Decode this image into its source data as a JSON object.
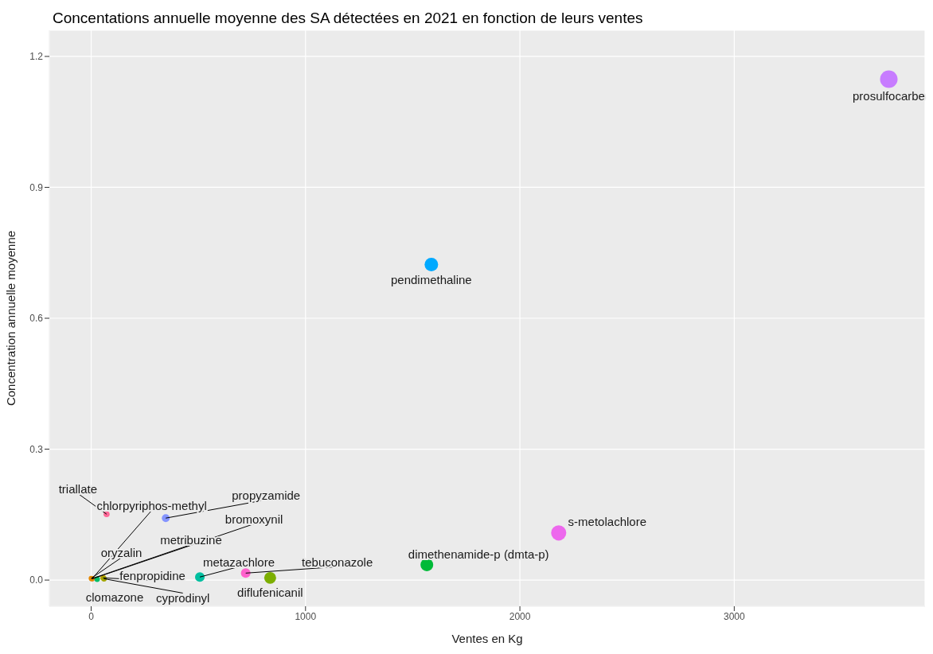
{
  "chart_data": {
    "type": "bubble",
    "title": "Concentations annuelle moyenne des SA détectées en 2021 en fonction de leurs ventes",
    "xlabel": "Ventes en Kg",
    "ylabel": "Concentration annuelle moyenne",
    "xlim": [
      -195,
      3890
    ],
    "xticks": [
      0,
      1000,
      2000,
      3000
    ],
    "ylim": [
      -0.06,
      1.26
    ],
    "yticks": [
      {
        "value": 0,
        "label": "0.0"
      },
      {
        "value": 0.3,
        "label": "0.3"
      },
      {
        "value": 0.6,
        "label": "0.6"
      },
      {
        "value": 0.9,
        "label": "0.9"
      },
      {
        "value": 1.2,
        "label": "1.2"
      }
    ],
    "grid": true,
    "legend": false,
    "marker": "circle",
    "series": [
      {
        "name": "prosulfocarbe",
        "color": "#c77cff",
        "x": [
          3721
        ],
        "values": [
          1.148
        ],
        "sizes": [
          1
        ]
      },
      {
        "name": "pendimethaline",
        "color": "#00a9ff",
        "x": [
          1587
        ],
        "values": [
          0.723
        ],
        "sizes": [
          0.6
        ]
      },
      {
        "name": "s-metolachlore",
        "color": "#ed68ed",
        "x": [
          2181
        ],
        "values": [
          0.108
        ],
        "sizes": [
          0.75
        ]
      },
      {
        "name": "dimethenamide-p (dmta-p)",
        "color": "#00ba38",
        "x": [
          1566
        ],
        "values": [
          0.035
        ],
        "sizes": [
          0.53
        ]
      },
      {
        "name": "diflufenicanil",
        "color": "#7cae00",
        "x": [
          835
        ],
        "values": [
          0.005
        ],
        "sizes": [
          0.46
        ]
      },
      {
        "name": "tebuconazole",
        "color": "#ff61cc",
        "x": [
          721
        ],
        "values": [
          0.016
        ],
        "sizes": [
          0.3
        ]
      },
      {
        "name": "metazachlore",
        "color": "#00bfa0",
        "x": [
          507
        ],
        "values": [
          0.007
        ],
        "sizes": [
          0.3
        ]
      },
      {
        "name": "propyzamide",
        "color": "#8494ff",
        "x": [
          348
        ],
        "values": [
          0.142
        ],
        "sizes": [
          0.2
        ]
      },
      {
        "name": "triallate",
        "color": "#ff6a98",
        "x": [
          72
        ],
        "values": [
          0.151
        ],
        "sizes": [
          0.12
        ]
      },
      {
        "name": "chlorpyriphos-methyl",
        "color": "#f8766d",
        "x": [
          4
        ],
        "values": [
          0.003
        ],
        "sizes": [
          0.08
        ]
      },
      {
        "name": "bromoxynil",
        "color": "#e7861b",
        "x": [
          6
        ],
        "values": [
          0.003
        ],
        "sizes": [
          0.08
        ]
      },
      {
        "name": "metribuzine",
        "color": "#d89000",
        "x": [
          2
        ],
        "values": [
          0.003
        ],
        "sizes": [
          0.08
        ]
      },
      {
        "name": "oryzalin",
        "color": "#e58700",
        "x": [
          0
        ],
        "values": [
          0.004
        ],
        "sizes": [
          0.08
        ]
      },
      {
        "name": "fenpropidine",
        "color": "#c49a00",
        "x": [
          56
        ],
        "values": [
          0.005
        ],
        "sizes": [
          0.1
        ]
      },
      {
        "name": "clomazone",
        "color": "#00be67",
        "x": [
          28
        ],
        "values": [
          0.002
        ],
        "sizes": [
          0.1
        ]
      },
      {
        "name": "cyprodinyl",
        "color": "#a3a500",
        "x": [
          60
        ],
        "values": [
          0.003
        ],
        "sizes": [
          0.1
        ]
      }
    ]
  }
}
